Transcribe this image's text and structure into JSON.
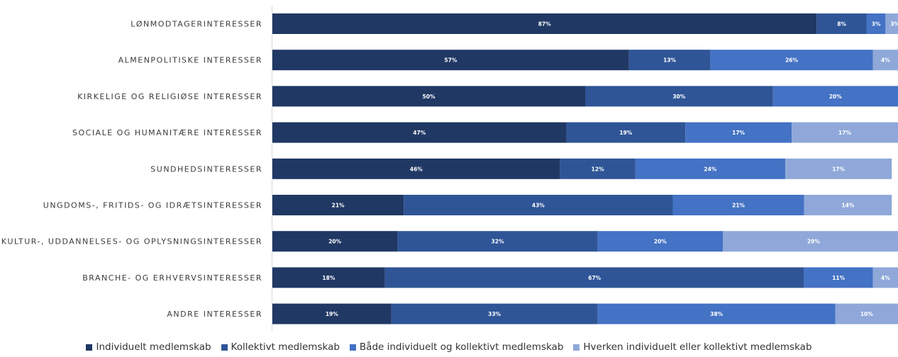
{
  "chart_data": {
    "type": "bar",
    "orientation": "horizontal",
    "stacked": true,
    "percent": true,
    "categories": [
      "LØNMODTAGERINTERESSER",
      "ALMENPOLITISKE INTERESSER",
      "KIRKELIGE OG RELIGIØSE INTERESSER",
      "SOCIALE OG HUMANITÆRE INTERESSER",
      "SUNDHEDSINTERESSER",
      "UNGDOMS-, FRITIDS- OG IDRÆTSINTERESSER",
      "KULTUR-, UDDANNELSES- OG OPLYSNINGSINTERESSER",
      "BRANCHE- OG ERHVERVSINTERESSER",
      "ANDRE INTERESSER"
    ],
    "series": [
      {
        "name": "Individuelt medlemskab",
        "color": "#203864",
        "values": [
          87,
          57,
          50,
          47,
          46,
          21,
          20,
          18,
          19
        ]
      },
      {
        "name": "Kollektivt medlemskab",
        "color": "#2f5597",
        "values": [
          8,
          13,
          30,
          19,
          12,
          43,
          32,
          67,
          33
        ]
      },
      {
        "name": "Både individuelt og kollektivt medlemskab",
        "color": "#4472c4",
        "values": [
          3,
          26,
          20,
          17,
          24,
          21,
          20,
          11,
          38
        ]
      },
      {
        "name": "Hverken individuelt eller kollektivt medlemskab",
        "color": "#8fa8d9",
        "values": [
          3,
          4,
          0,
          17,
          17,
          14,
          29,
          4,
          10
        ]
      }
    ],
    "legend_position": "bottom",
    "grid": false,
    "xlabel": "",
    "ylabel": ""
  }
}
